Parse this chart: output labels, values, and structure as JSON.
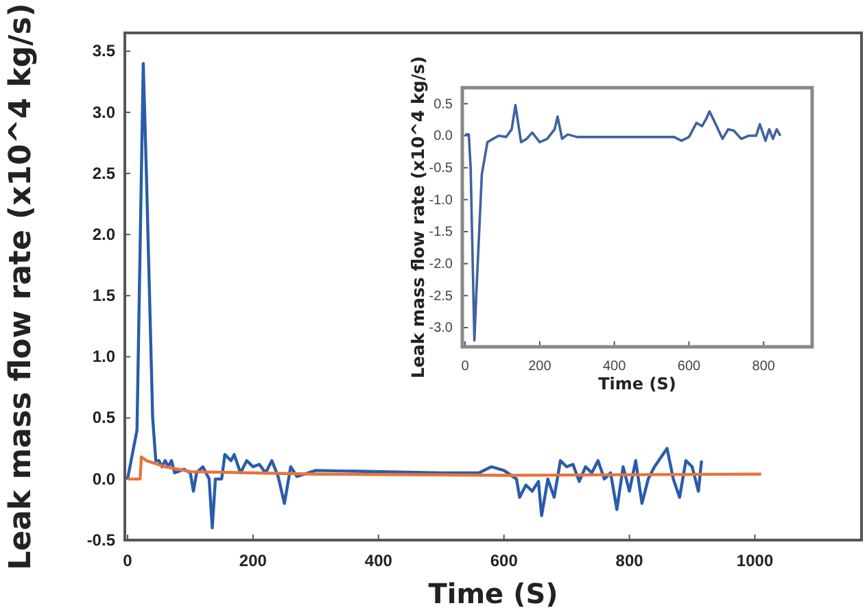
{
  "chart_data": [
    {
      "type": "line",
      "xlabel": "Time (S)",
      "ylabel": "Leak mass flow rate (x10^4 kg/s)",
      "xlim": [
        0,
        1170
      ],
      "ylim": [
        -0.5,
        3.65
      ],
      "xticks": [
        0,
        200,
        400,
        600,
        800,
        1000
      ],
      "yticks": [
        {
          "value": -0.5,
          "label": "-0.5"
        },
        {
          "value": 0,
          "label": "0.0"
        },
        {
          "value": 0.5,
          "label": "0.5"
        },
        {
          "value": 1,
          "label": "1.0"
        },
        {
          "value": 1.5,
          "label": "1.5"
        },
        {
          "value": 2,
          "label": "2.0"
        },
        {
          "value": 2.5,
          "label": "2.5"
        },
        {
          "value": 3,
          "label": "3.0"
        },
        {
          "value": 3.5,
          "label": "3.5"
        }
      ],
      "series": [
        {
          "color": "#2a5caa",
          "x": [
            0,
            15,
            25,
            30,
            40,
            45,
            50,
            55,
            60,
            65,
            70,
            75,
            90,
            100,
            105,
            110,
            120,
            130,
            135,
            140,
            150,
            155,
            165,
            170,
            180,
            190,
            200,
            210,
            220,
            230,
            240,
            250,
            260,
            270,
            300,
            500,
            560,
            580,
            600,
            620,
            625,
            635,
            645,
            655,
            660,
            670,
            680,
            690,
            700,
            710,
            720,
            730,
            740,
            750,
            760,
            770,
            780,
            790,
            800,
            810,
            820,
            830,
            840,
            860,
            870,
            880,
            890,
            900,
            910,
            915
          ],
          "values": [
            0,
            0.4,
            3.4,
            2.5,
            0.5,
            0.15,
            0.15,
            0.1,
            0.15,
            0.1,
            0.15,
            0.05,
            0.08,
            0.05,
            -0.1,
            0.05,
            0.1,
            0,
            -0.4,
            0,
            0,
            0.2,
            0.15,
            0.2,
            0.05,
            0.15,
            0.1,
            0.12,
            0.05,
            0.15,
            0.02,
            -0.2,
            0.1,
            0.02,
            0.07,
            0.05,
            0.05,
            0.1,
            0.07,
            0,
            -0.15,
            -0.05,
            -0.1,
            -0.02,
            -0.3,
            0,
            -0.15,
            0.15,
            0.1,
            0.12,
            -0.02,
            0.1,
            0.05,
            0.15,
            0,
            0.05,
            -0.25,
            0.1,
            -0.1,
            0.15,
            -0.2,
            0,
            0.1,
            0.25,
            0,
            -0.15,
            0.15,
            0.1,
            -0.1,
            0.15
          ]
        },
        {
          "color": "#e8743b",
          "x": [
            0,
            20,
            22,
            30,
            60,
            100,
            300,
            600,
            1010
          ],
          "values": [
            0,
            0,
            0.18,
            0.15,
            0.1,
            0.06,
            0.04,
            0.03,
            0.04
          ]
        }
      ]
    },
    {
      "type": "line",
      "xlabel": "Time (S)",
      "ylabel": "Leak mass flow rate (x10^4 kg/s)",
      "xlim": [
        0,
        930
      ],
      "ylim": [
        -3.3,
        0.75
      ],
      "xticks": [
        0,
        200,
        400,
        600,
        800
      ],
      "yticks": [
        {
          "value": -3,
          "label": "-3.0"
        },
        {
          "value": -2.5,
          "label": "-2.5"
        },
        {
          "value": -2,
          "label": "-2.0"
        },
        {
          "value": -1.5,
          "label": "-1.5"
        },
        {
          "value": -1,
          "label": "-1.0"
        },
        {
          "value": -0.5,
          "label": "-0.5"
        },
        {
          "value": 0,
          "label": "0.0"
        },
        {
          "value": 0.5,
          "label": "0.5"
        }
      ],
      "series": [
        {
          "color": "#3f62a0",
          "x": [
            0,
            10,
            15,
            25,
            30,
            45,
            60,
            75,
            90,
            110,
            125,
            135,
            150,
            165,
            180,
            200,
            220,
            240,
            248,
            260,
            275,
            300,
            560,
            580,
            600,
            620,
            635,
            645,
            655,
            670,
            690,
            705,
            720,
            740,
            760,
            780,
            790,
            805,
            815,
            825,
            835,
            845
          ],
          "values": [
            0.02,
            0.02,
            -0.5,
            -3.2,
            -2.5,
            -0.6,
            -0.1,
            -0.05,
            0,
            -0.02,
            0.1,
            0.48,
            -0.1,
            -0.05,
            0.05,
            -0.1,
            -0.05,
            0.1,
            0.3,
            -0.05,
            0.02,
            -0.02,
            -0.02,
            -0.08,
            -0.02,
            0.2,
            0.15,
            0.25,
            0.38,
            0.2,
            -0.05,
            0.1,
            0.08,
            -0.05,
            0,
            0,
            0.18,
            -0.08,
            0.1,
            -0.05,
            0.1,
            0
          ]
        }
      ]
    }
  ]
}
